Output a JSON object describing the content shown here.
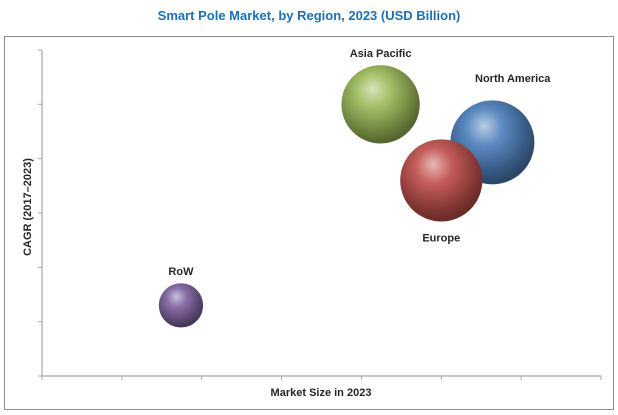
{
  "chart_data": {
    "type": "bubble",
    "title": "Smart Pole Market, by Region, 2023 (USD Billion)",
    "xlabel": "Market Size in 2023",
    "ylabel": "CAGR (2017–2023)",
    "xlim": [
      0,
      7
    ],
    "ylim": [
      0,
      6
    ],
    "x_ticks_count": 8,
    "y_ticks_count": 7,
    "tick_labels_shown": false,
    "grid": false,
    "legend": "none",
    "series": [
      {
        "name": "Asia Pacific",
        "x": 4.24,
        "y": 5.0,
        "size": 1.0,
        "color": "#9bbb59",
        "label_position": "top"
      },
      {
        "name": "North America",
        "x": 5.64,
        "y": 4.3,
        "size": 1.15,
        "color": "#4f81bd",
        "label_position": "top-right"
      },
      {
        "name": "Europe",
        "x": 5.0,
        "y": 3.6,
        "size": 1.1,
        "color": "#c0504d",
        "label_position": "bottom"
      },
      {
        "name": "RoW",
        "x": 1.74,
        "y": 1.3,
        "size": 0.32,
        "color": "#8064a2",
        "label_position": "top"
      }
    ]
  }
}
